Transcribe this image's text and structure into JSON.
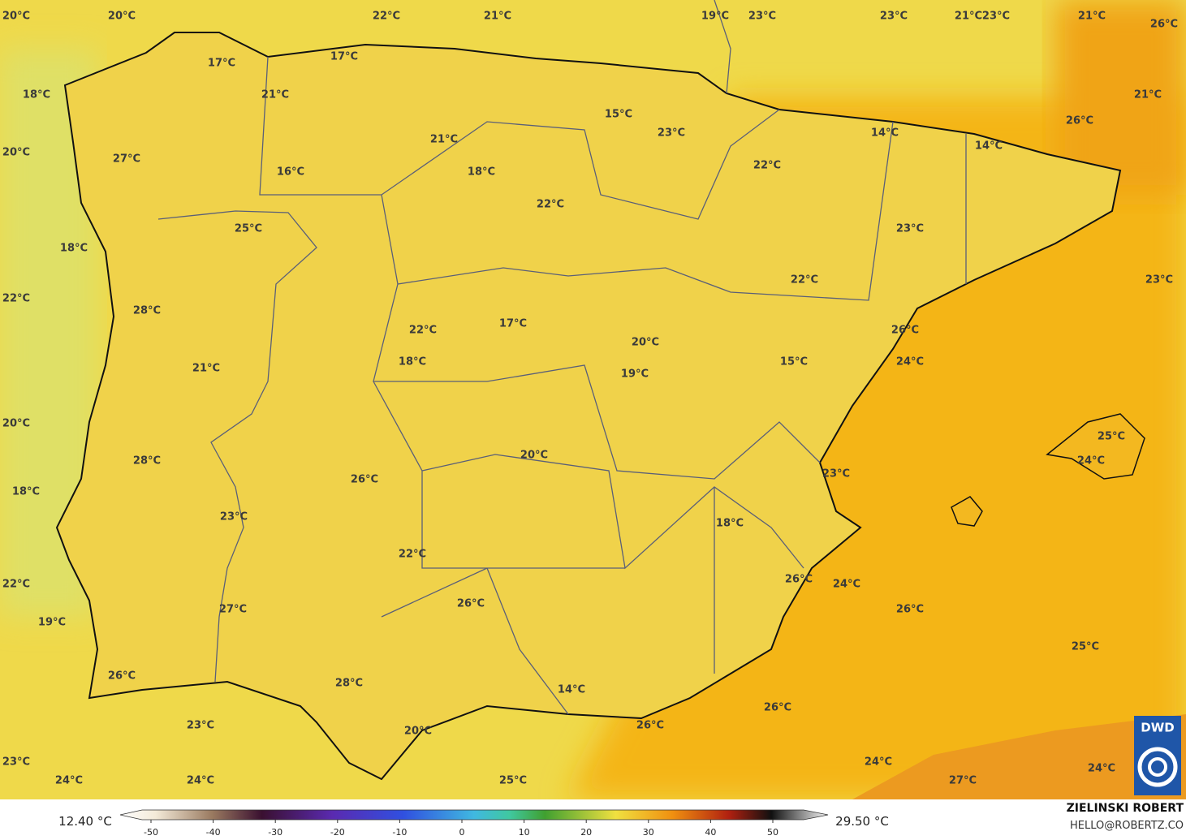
{
  "map": {
    "labels": [
      "20°C",
      "20°C",
      "22°C",
      "21°C",
      "19°C",
      "23°C",
      "23°C",
      "21°C",
      "23°C",
      "21°C",
      "26°C",
      "17°C",
      "17°C",
      "18°C",
      "21°C",
      "21°C",
      "15°C",
      "23°C",
      "14°C",
      "26°C",
      "20°C",
      "21°C",
      "14°C",
      "27°C",
      "22°C",
      "16°C",
      "18°C",
      "22°C",
      "25°C",
      "23°C",
      "18°C",
      "22°C",
      "23°C",
      "22°C",
      "28°C",
      "17°C",
      "22°C",
      "26°C",
      "20°C",
      "18°C",
      "24°C",
      "15°C",
      "21°C",
      "19°C",
      "20°C",
      "25°C",
      "20°C",
      "24°C",
      "28°C",
      "26°C",
      "23°C",
      "18°C",
      "23°C",
      "18°C",
      "22°C",
      "22°C",
      "26°C",
      "24°C",
      "26°C",
      "27°C",
      "26°C",
      "19°C",
      "25°C",
      "26°C",
      "28°C",
      "14°C",
      "26°C",
      "23°C",
      "26°C",
      "20°C",
      "23°C",
      "24°C",
      "24°C",
      "24°C",
      "24°C",
      "25°C",
      "27°C"
    ]
  },
  "colorbar": {
    "min_label": "12.40 °C",
    "max_label": "29.50 °C",
    "range": [
      -55,
      55
    ],
    "ticks": [
      -50,
      -40,
      -30,
      -20,
      -10,
      0,
      10,
      20,
      30,
      40,
      50
    ]
  },
  "credits": {
    "author": "ZIELINSKI ROBERT",
    "contact": "HELLO@ROBERTZ.CO",
    "logo": "DWD"
  }
}
